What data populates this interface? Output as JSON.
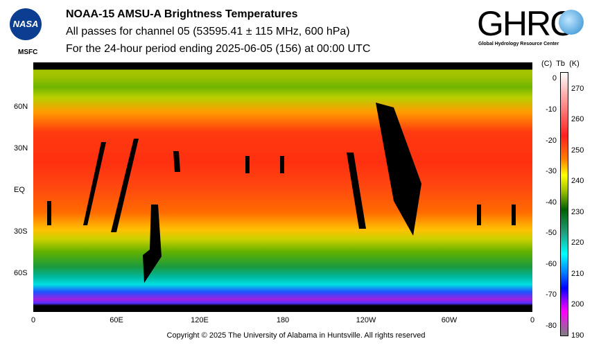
{
  "header": {
    "title": "NOAA-15 AMSU-A Brightness Temperatures",
    "subtitle": "All passes for channel 05 (53595.41 ± 115 MHz, 600 hPa)",
    "period": "For the 24-hour period ending 2025-06-05 (156) at 00:00 UTC"
  },
  "logos": {
    "nasa_text": "NASA",
    "nasa_sub": "MSFC",
    "ghrc_text": "GHRC",
    "ghrc_sub": "Global Hydrology Resource Center"
  },
  "map": {
    "x_labels": [
      "0",
      "60E",
      "120E",
      "180",
      "120W",
      "60W",
      "0"
    ],
    "y_labels": [
      "60N",
      "30N",
      "EQ",
      "30S",
      "60S"
    ]
  },
  "colorbar": {
    "header": "(C)  Tb  (K)",
    "celsius": [
      "0",
      "-10",
      "-20",
      "-30",
      "-40",
      "-50",
      "-60",
      "-70",
      "-80"
    ],
    "kelvin": [
      "270",
      "260",
      "250",
      "240",
      "230",
      "220",
      "210",
      "200",
      "190"
    ],
    "range_k": [
      190,
      275.5
    ]
  },
  "footer": "Copyright © 2025 The University of Alabama in Huntsville.  All rights reserved"
}
